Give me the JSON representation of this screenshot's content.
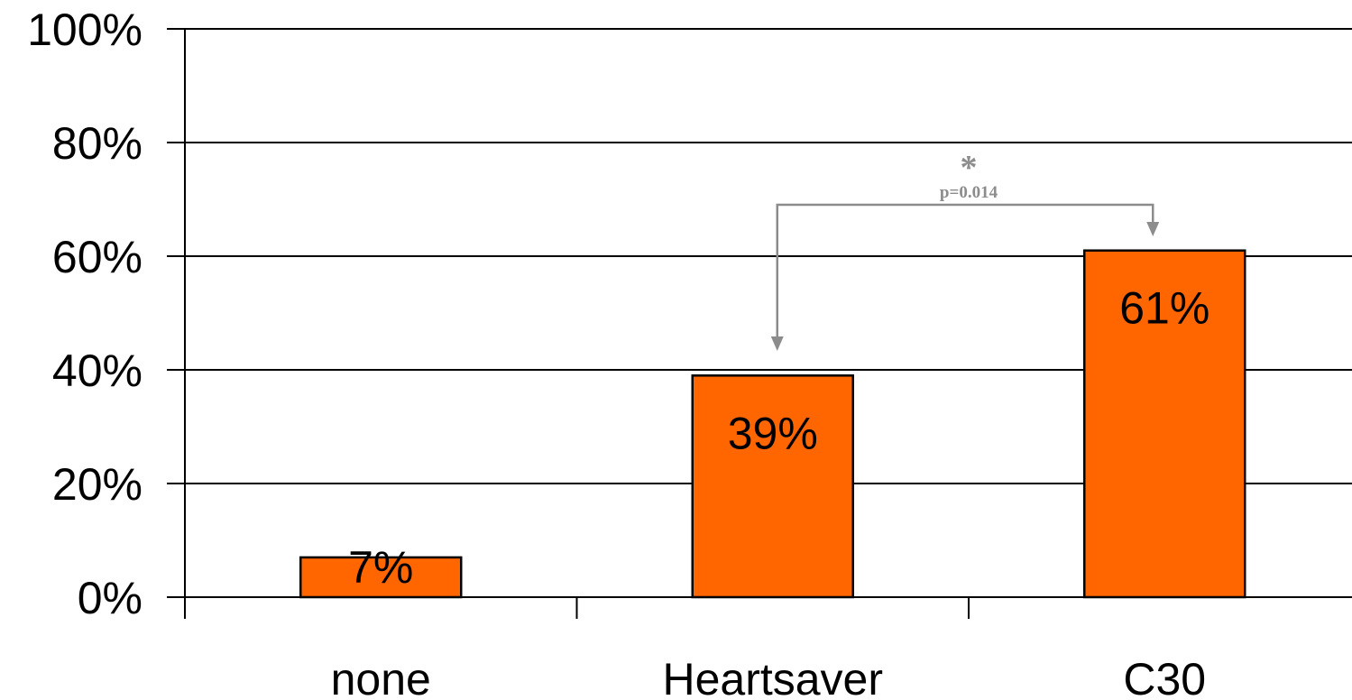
{
  "chart_data": {
    "type": "bar",
    "categories": [
      "none",
      "Heartsaver",
      "C30"
    ],
    "values": [
      7,
      39,
      61
    ],
    "data_labels": [
      "7%",
      "39%",
      "61%"
    ],
    "title": "",
    "xlabel": "",
    "ylabel": "",
    "ylim": [
      0,
      100
    ],
    "yticks": [
      0,
      20,
      40,
      60,
      80,
      100
    ],
    "ytick_labels": [
      "0%",
      "20%",
      "40%",
      "60%",
      "80%",
      "100%"
    ],
    "grid": true,
    "legend": "none",
    "bar_color": "#ff6600",
    "bar_edge_color": "#000000",
    "annotation": {
      "symbol": "*",
      "text": "p=0.014",
      "from_category": "Heartsaver",
      "to_category": "C30",
      "color": "#8c8c8c"
    }
  }
}
